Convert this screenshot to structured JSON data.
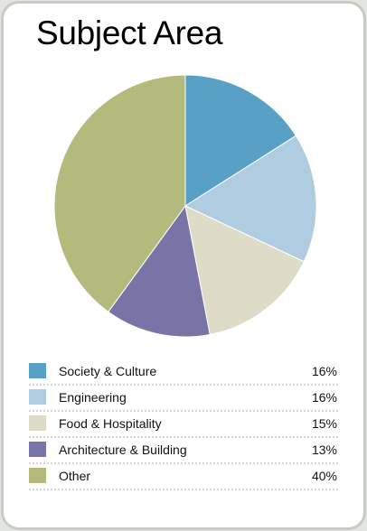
{
  "chart_data": {
    "type": "pie",
    "title": "Subject Area",
    "slices": [
      {
        "label": "Society & Culture",
        "value": 16,
        "value_label": "16%",
        "color": "#58a0c5"
      },
      {
        "label": "Engineering",
        "value": 16,
        "value_label": "16%",
        "color": "#b0cce0"
      },
      {
        "label": "Food & Hospitality",
        "value": 15,
        "value_label": "15%",
        "color": "#dedcc6"
      },
      {
        "label": "Architecture & Building",
        "value": 13,
        "value_label": "13%",
        "color": "#7874a8"
      },
      {
        "label": "Other",
        "value": 40,
        "value_label": "40%",
        "color": "#b4b97c"
      }
    ],
    "start_angle": "12 o'clock",
    "direction": "clockwise",
    "legend": "bottom"
  }
}
